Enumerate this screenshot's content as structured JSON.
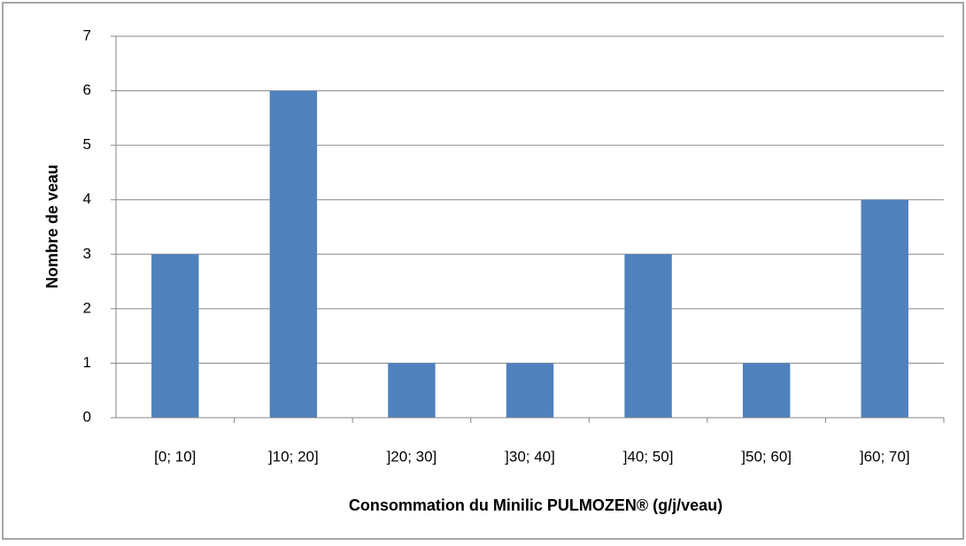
{
  "chart_data": {
    "type": "bar",
    "categories": [
      "[0; 10]",
      "]10; 20]",
      "]20; 30]",
      "]30; 40]",
      "]40; 50]",
      "]50; 60]",
      "]60; 70]"
    ],
    "values": [
      3,
      6,
      1,
      1,
      3,
      1,
      4
    ],
    "color": "#4f81bd",
    "xlabel": "Consommation du Minilic PULMOZEN® (g/j/veau)",
    "ylabel": "Nombre de veau",
    "ylim": [
      0,
      7
    ],
    "yticks": [
      0,
      1,
      2,
      3,
      4,
      5,
      6,
      7
    ],
    "grid": true
  }
}
